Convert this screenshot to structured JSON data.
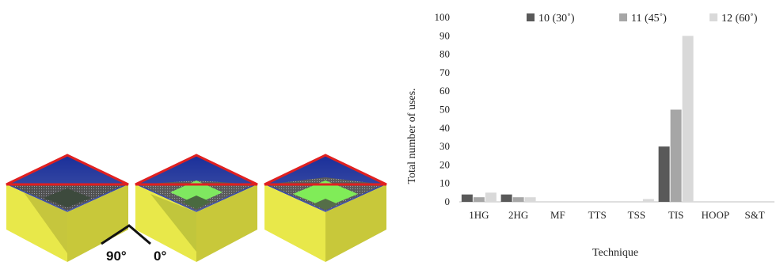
{
  "illustration": {
    "angle_left_label": "90°",
    "angle_right_label": "0°"
  },
  "chart_data": {
    "type": "bar",
    "categories": [
      "1HG",
      "2HG",
      "MF",
      "TTS",
      "TSS",
      "TIS",
      "HOOP",
      "S&T"
    ],
    "series": [
      {
        "name": "10 (30˚)",
        "color": "#595959",
        "values": [
          4,
          4,
          0,
          0,
          0,
          30,
          0,
          0
        ]
      },
      {
        "name": "11 (45˚)",
        "color": "#a6a6a6",
        "values": [
          2.5,
          2.5,
          0,
          0,
          0,
          50,
          0,
          0
        ]
      },
      {
        "name": "12 (60˚)",
        "color": "#d9d9d9",
        "values": [
          5,
          2.5,
          0,
          0,
          1.5,
          90,
          0,
          0
        ]
      }
    ],
    "title": "",
    "xlabel": "Technique",
    "ylabel": "Total number of uses.",
    "ylim": [
      0,
      100
    ],
    "yticks": [
      0,
      10,
      20,
      30,
      40,
      50,
      60,
      70,
      80,
      90,
      100
    ],
    "grid": false,
    "legend_position": "top"
  }
}
